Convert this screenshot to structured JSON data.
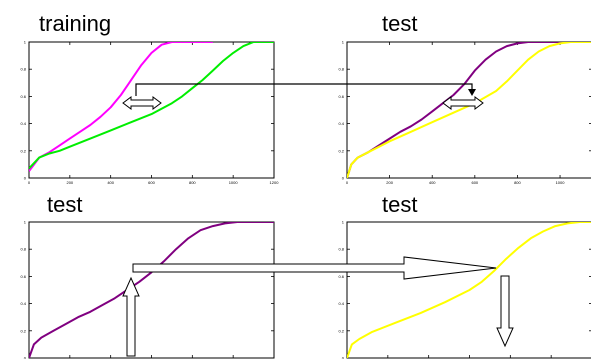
{
  "chart_data": [
    {
      "type": "line",
      "title": "training",
      "xlim": [
        0,
        1200
      ],
      "ylim": [
        0,
        1
      ],
      "xticks": [
        "0",
        "200",
        "400",
        "600",
        "800",
        "1000",
        "1200"
      ],
      "yticks": [
        "0",
        "0.2",
        "0.4",
        "0.6",
        "0.8",
        "1"
      ],
      "series": [
        {
          "color": "#ff00ff",
          "x": [
            0,
            50,
            100,
            150,
            200,
            250,
            300,
            350,
            400,
            450,
            500,
            550,
            600,
            650,
            700,
            750,
            800,
            850,
            900
          ],
          "y": [
            0.05,
            0.15,
            0.19,
            0.24,
            0.29,
            0.34,
            0.39,
            0.45,
            0.52,
            0.61,
            0.72,
            0.83,
            0.92,
            0.98,
            1.0,
            1.0,
            1.0,
            1.0,
            1.0
          ]
        },
        {
          "color": "#00ee00",
          "x": [
            0,
            50,
            100,
            150,
            200,
            300,
            400,
            500,
            600,
            700,
            750,
            800,
            850,
            900,
            950,
            1000,
            1050,
            1100,
            1150,
            1200
          ],
          "y": [
            0.07,
            0.15,
            0.18,
            0.2,
            0.23,
            0.29,
            0.35,
            0.41,
            0.47,
            0.55,
            0.6,
            0.66,
            0.72,
            0.79,
            0.86,
            0.92,
            0.97,
            1.0,
            1.0,
            1.0
          ]
        }
      ]
    },
    {
      "type": "line",
      "title": "test",
      "xlim": [
        0,
        1150
      ],
      "ylim": [
        0,
        1
      ],
      "xticks": [
        "0",
        "200",
        "400",
        "600",
        "800",
        "1000"
      ],
      "yticks": [
        "0",
        "0.2",
        "0.4",
        "0.6",
        "0.8",
        "1"
      ],
      "series": [
        {
          "color": "#800080",
          "x": [
            0,
            20,
            50,
            100,
            150,
            200,
            250,
            300,
            350,
            400,
            450,
            500,
            550,
            600,
            650,
            700,
            750,
            800,
            850,
            900,
            950,
            1000,
            1150
          ],
          "y": [
            0,
            0.1,
            0.15,
            0.19,
            0.24,
            0.29,
            0.34,
            0.38,
            0.43,
            0.49,
            0.55,
            0.61,
            0.69,
            0.79,
            0.87,
            0.93,
            0.97,
            0.99,
            1.0,
            1.0,
            1.0,
            1.0,
            1.0
          ]
        },
        {
          "color": "#ffff00",
          "x": [
            0,
            20,
            50,
            100,
            200,
            300,
            400,
            500,
            600,
            700,
            750,
            800,
            850,
            900,
            950,
            1000,
            1050,
            1100,
            1150
          ],
          "y": [
            0,
            0.1,
            0.15,
            0.19,
            0.27,
            0.34,
            0.41,
            0.48,
            0.55,
            0.64,
            0.71,
            0.79,
            0.87,
            0.93,
            0.97,
            0.99,
            1.0,
            1.0,
            1.0
          ]
        }
      ]
    },
    {
      "type": "line",
      "title": "test",
      "xlim": [
        0,
        1
      ],
      "ylim": [
        0,
        1
      ],
      "yticks": [
        "0",
        "0.2",
        "0.4",
        "0.6",
        "0.8",
        "1"
      ],
      "series": [
        {
          "color": "#800080",
          "x": [
            0,
            0.02,
            0.05,
            0.1,
            0.15,
            0.2,
            0.25,
            0.3,
            0.35,
            0.4,
            0.45,
            0.5,
            0.55,
            0.6,
            0.65,
            0.7,
            0.75,
            0.8,
            0.85,
            0.9,
            1.0
          ],
          "y": [
            0,
            0.1,
            0.15,
            0.2,
            0.25,
            0.3,
            0.34,
            0.39,
            0.44,
            0.5,
            0.56,
            0.63,
            0.71,
            0.8,
            0.88,
            0.94,
            0.97,
            0.99,
            1.0,
            1.0,
            1.0
          ]
        }
      ]
    },
    {
      "type": "line",
      "title": "test",
      "xlim": [
        0,
        1
      ],
      "ylim": [
        0,
        1
      ],
      "yticks": [
        "0",
        "0.2",
        "0.4",
        "0.6",
        "0.8",
        "1"
      ],
      "series": [
        {
          "color": "#ffff00",
          "x": [
            0,
            0.02,
            0.05,
            0.1,
            0.2,
            0.3,
            0.4,
            0.5,
            0.55,
            0.6,
            0.65,
            0.7,
            0.75,
            0.8,
            0.85,
            0.9,
            0.95,
            1.0
          ],
          "y": [
            0,
            0.1,
            0.14,
            0.19,
            0.26,
            0.33,
            0.41,
            0.5,
            0.56,
            0.64,
            0.73,
            0.81,
            0.88,
            0.93,
            0.97,
            0.99,
            1.0,
            1.0
          ]
        }
      ]
    }
  ]
}
